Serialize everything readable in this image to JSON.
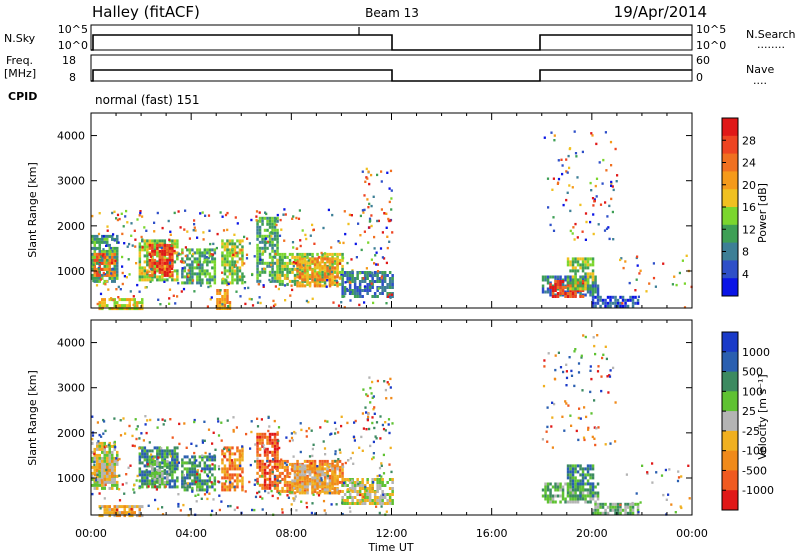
{
  "header": {
    "station": "Halley (fitACF)",
    "beam": "Beam 13",
    "date": "19/Apr/2014"
  },
  "panels": {
    "nsky": {
      "left_label": "N.Sky",
      "left_ticks": [
        "10^5",
        "10^0"
      ],
      "right_label": "N.Search",
      "right_ticks": [
        "10^5",
        "10^0"
      ],
      "right_line": "........"
    },
    "freq": {
      "left_label_1": "Freq.",
      "left_label_2": "[MHz]",
      "left_ticks": [
        "18",
        "8"
      ],
      "right_label": "Nave",
      "right_ticks": [
        "60",
        "0"
      ],
      "right_line": "...."
    },
    "cpid": {
      "label": "CPID",
      "value": "normal (fast) 151"
    }
  },
  "chart_data": [
    {
      "type": "heatmap",
      "name": "power",
      "ylabel": "Slant Range [km]",
      "xlabel": "Time UT",
      "x_ticks": [
        "00:00",
        "04:00",
        "08:00",
        "12:00",
        "16:00",
        "20:00",
        "00:00"
      ],
      "x_range_hours": [
        0,
        24
      ],
      "ylim": [
        180,
        4500
      ],
      "y_ticks": [
        1000,
        2000,
        3000,
        4000
      ],
      "colorbar": {
        "label": "Power [dB]",
        "ticks": [
          "4",
          "8",
          "12",
          "16",
          "20",
          "24",
          "28"
        ],
        "range": [
          0,
          30
        ],
        "colors": [
          "#0a14e6",
          "#2e4fc8",
          "#3d7f96",
          "#3e9f55",
          "#7bd62e",
          "#f0c020",
          "#f59a1a",
          "#f07020",
          "#ee4422",
          "#e01818"
        ]
      },
      "patches": [
        {
          "t": [
            0.0,
            1.0
          ],
          "r": [
            750,
            1800
          ],
          "level": 3
        },
        {
          "t": [
            0.1,
            0.9
          ],
          "r": [
            900,
            1400
          ],
          "level": 7
        },
        {
          "t": [
            1.9,
            3.4
          ],
          "r": [
            800,
            1700
          ],
          "level": 4
        },
        {
          "t": [
            2.3,
            3.2
          ],
          "r": [
            900,
            1600
          ],
          "level": 8
        },
        {
          "t": [
            3.6,
            4.9
          ],
          "r": [
            750,
            1500
          ],
          "level": 3
        },
        {
          "t": [
            5.2,
            6.0
          ],
          "r": [
            750,
            1700
          ],
          "level": 4
        },
        {
          "t": [
            6.6,
            7.4
          ],
          "r": [
            750,
            2200
          ],
          "level": 3
        },
        {
          "t": [
            7.4,
            10.0
          ],
          "r": [
            700,
            1400
          ],
          "level": 4
        },
        {
          "t": [
            8.2,
            9.8
          ],
          "r": [
            650,
            1300
          ],
          "level": 6
        },
        {
          "t": [
            10.0,
            12.0
          ],
          "r": [
            450,
            1000
          ],
          "level": 2
        },
        {
          "t": [
            0.3,
            2.0
          ],
          "r": [
            200,
            400
          ],
          "level": 5
        },
        {
          "t": [
            5.0,
            5.5
          ],
          "r": [
            200,
            600
          ],
          "level": 6
        },
        {
          "t": [
            18.0,
            20.2
          ],
          "r": [
            450,
            900
          ],
          "level": 2
        },
        {
          "t": [
            18.3,
            19.6
          ],
          "r": [
            450,
            800
          ],
          "level": 8
        },
        {
          "t": [
            19.0,
            20.0
          ],
          "r": [
            600,
            1300
          ],
          "level": 4
        },
        {
          "t": [
            20.0,
            21.8
          ],
          "r": [
            220,
            450
          ],
          "level": 1
        }
      ],
      "scatter_regions": [
        {
          "t": [
            0,
            12
          ],
          "r": [
            200,
            2400
          ],
          "n": 420
        },
        {
          "t": [
            10.8,
            12
          ],
          "r": [
            2100,
            3300
          ],
          "n": 40
        },
        {
          "t": [
            18,
            21
          ],
          "r": [
            1700,
            4200
          ],
          "n": 90
        },
        {
          "t": [
            21,
            24
          ],
          "r": [
            200,
            1400
          ],
          "n": 30
        }
      ]
    },
    {
      "type": "heatmap",
      "name": "velocity",
      "ylabel": "Slant Range [km]",
      "xlabel": "Time UT",
      "x_ticks": [
        "00:00",
        "04:00",
        "08:00",
        "12:00",
        "16:00",
        "20:00",
        "00:00"
      ],
      "x_range_hours": [
        0,
        24
      ],
      "ylim": [
        180,
        4500
      ],
      "y_ticks": [
        1000,
        2000,
        3000,
        4000
      ],
      "colorbar": {
        "label": "Velocity [m s⁻¹]",
        "ticks": [
          "1000",
          "500",
          "100",
          "25",
          "-25",
          "-100",
          "-500",
          "-1000"
        ],
        "colors": [
          "#1a3ac8",
          "#2a5fb0",
          "#3c8a60",
          "#5fc232",
          "#b4b4b4",
          "#f0b020",
          "#f08a1a",
          "#f05a20",
          "#e01818"
        ]
      },
      "patches": [
        {
          "t": [
            0.0,
            1.0
          ],
          "r": [
            750,
            1800
          ],
          "level": 4
        },
        {
          "t": [
            0.2,
            0.8
          ],
          "r": [
            900,
            1400
          ],
          "level": 5
        },
        {
          "t": [
            1.9,
            3.4
          ],
          "r": [
            800,
            1700
          ],
          "level": 2
        },
        {
          "t": [
            2.4,
            3.0
          ],
          "r": [
            900,
            1400
          ],
          "level": 3
        },
        {
          "t": [
            3.6,
            4.9
          ],
          "r": [
            750,
            1500
          ],
          "level": 2
        },
        {
          "t": [
            5.2,
            6.0
          ],
          "r": [
            750,
            1700
          ],
          "level": 6
        },
        {
          "t": [
            6.6,
            7.4
          ],
          "r": [
            750,
            2000
          ],
          "level": 7
        },
        {
          "t": [
            7.4,
            10.0
          ],
          "r": [
            700,
            1400
          ],
          "level": 6
        },
        {
          "t": [
            8.0,
            9.8
          ],
          "r": [
            650,
            1300
          ],
          "level": 5
        },
        {
          "t": [
            10.0,
            12.0
          ],
          "r": [
            450,
            1000
          ],
          "level": 4
        },
        {
          "t": [
            0.3,
            2.0
          ],
          "r": [
            200,
            400
          ],
          "level": 5
        },
        {
          "t": [
            18.0,
            20.2
          ],
          "r": [
            450,
            900
          ],
          "level": 3
        },
        {
          "t": [
            19.0,
            20.0
          ],
          "r": [
            600,
            1300
          ],
          "level": 2
        },
        {
          "t": [
            20.0,
            21.8
          ],
          "r": [
            220,
            450
          ],
          "level": 3
        }
      ],
      "scatter_regions": [
        {
          "t": [
            0,
            12
          ],
          "r": [
            200,
            2400
          ],
          "n": 420
        },
        {
          "t": [
            10.8,
            12
          ],
          "r": [
            2100,
            3300
          ],
          "n": 40
        },
        {
          "t": [
            18,
            21
          ],
          "r": [
            1700,
            4200
          ],
          "n": 90
        },
        {
          "t": [
            21,
            24
          ],
          "r": [
            200,
            1400
          ],
          "n": 30
        }
      ]
    }
  ]
}
